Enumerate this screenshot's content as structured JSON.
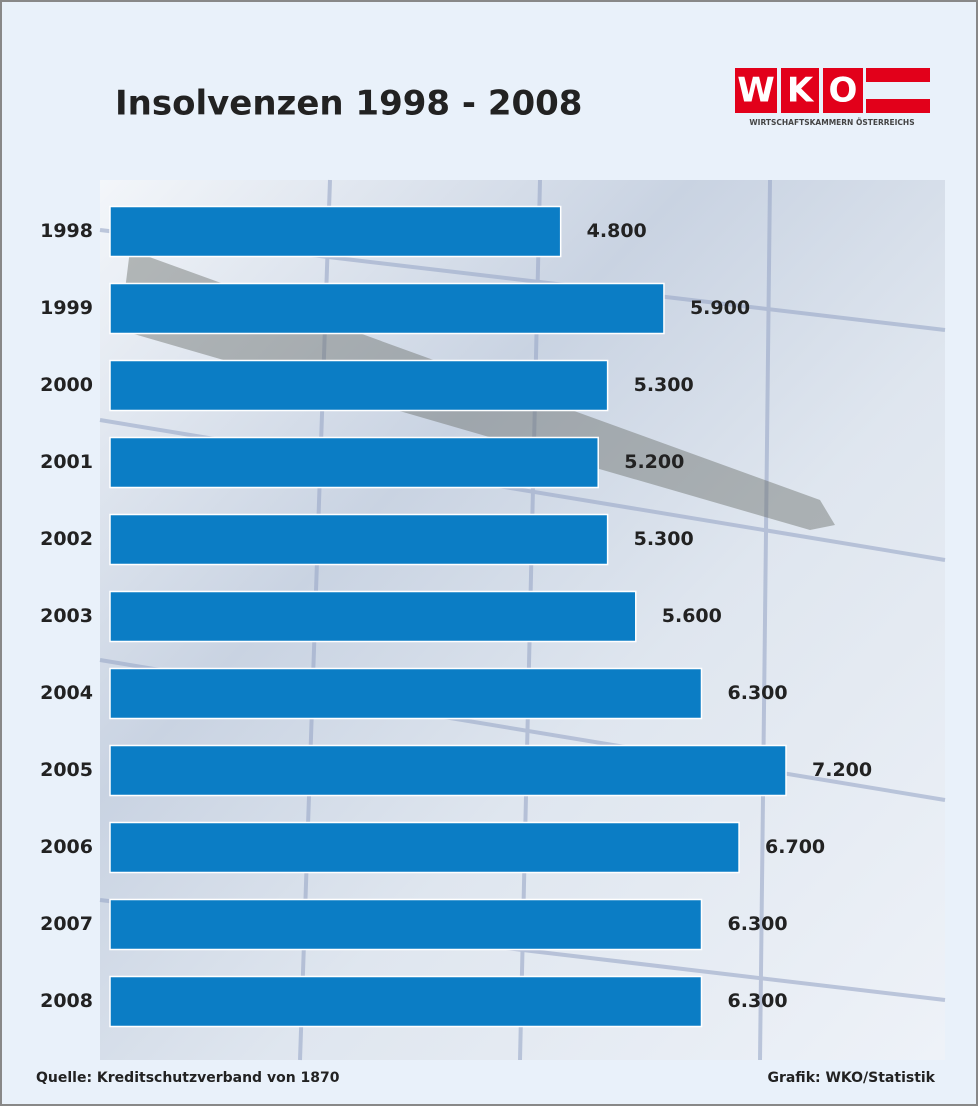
{
  "chart_data": {
    "type": "hbar",
    "title": "Insolvenzen 1998 - 2008",
    "categories": [
      "1998",
      "1999",
      "2000",
      "2001",
      "2002",
      "2003",
      "2004",
      "2005",
      "2006",
      "2007",
      "2008"
    ],
    "values": [
      4800,
      5900,
      5300,
      5200,
      5300,
      5600,
      6300,
      7200,
      6700,
      6300,
      6300
    ],
    "value_labels": [
      "4.800",
      "5.900",
      "5.300",
      "5.200",
      "5.300",
      "5.600",
      "6.300",
      "7.200",
      "6.700",
      "6.300",
      "6.300"
    ],
    "color": "#0b7dc5"
  },
  "logo": {
    "letters": [
      "W",
      "K",
      "O"
    ],
    "caption": "WIRTSCHAFTSKAMMERN ÖSTERREICHS"
  },
  "footer": {
    "source": "Quelle: Kreditschutzverband von 1870",
    "credit": "Grafik: WKO/Statistik"
  }
}
